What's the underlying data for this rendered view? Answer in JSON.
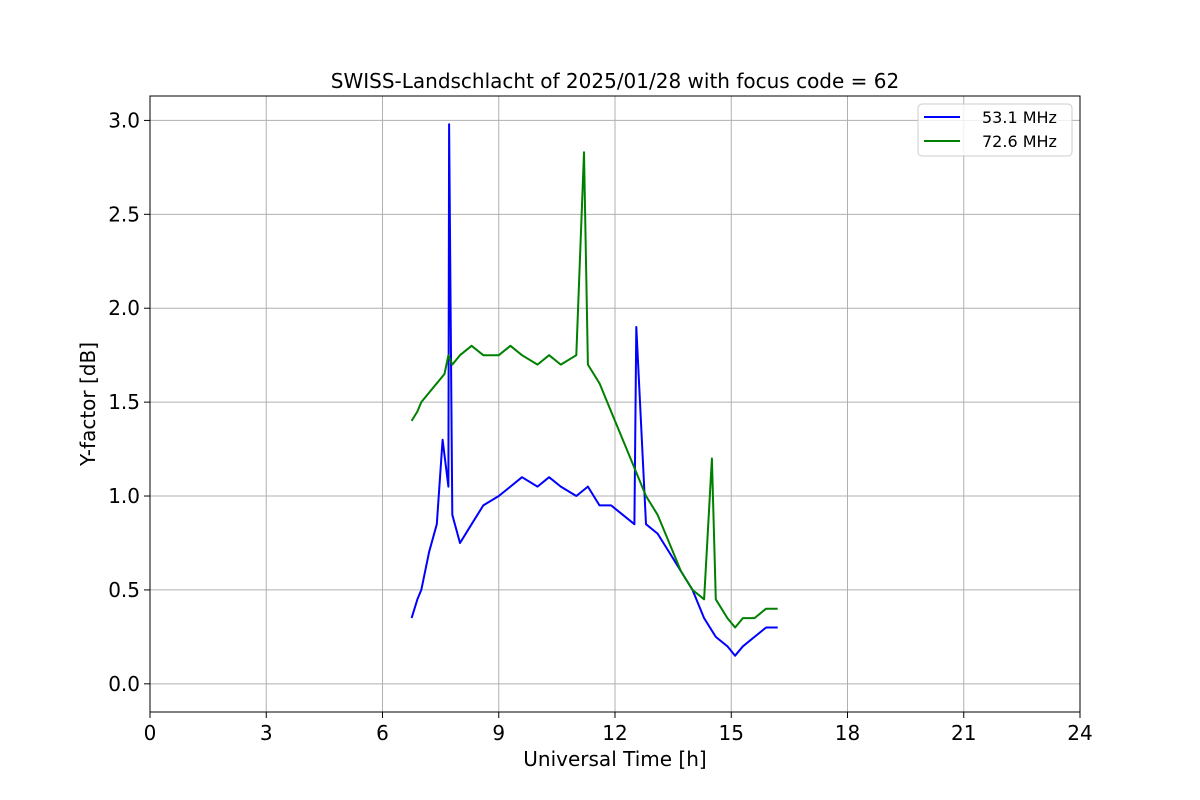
{
  "chart_data": {
    "type": "line",
    "title": "SWISS-Landschlacht of 2025/01/28 with focus code = 62",
    "xlabel": "Universal Time [h]",
    "ylabel": "Y-factor [dB]",
    "xlim": [
      0,
      24
    ],
    "ylim": [
      -0.15,
      3.13
    ],
    "xticks": [
      0,
      3,
      6,
      9,
      12,
      15,
      18,
      21,
      24
    ],
    "xtick_labels": [
      "0",
      "3",
      "6",
      "9",
      "12",
      "15",
      "18",
      "21",
      "24"
    ],
    "yticks": [
      0.0,
      0.5,
      1.0,
      1.5,
      2.0,
      2.5,
      3.0
    ],
    "ytick_labels": [
      "0.0",
      "0.5",
      "1.0",
      "1.5",
      "2.0",
      "2.5",
      "3.0"
    ],
    "grid": true,
    "legend_position": "top-right",
    "series": [
      {
        "name": "53.1 MHz",
        "color": "#0000ff",
        "x": [
          6.75,
          6.9,
          7.0,
          7.2,
          7.4,
          7.55,
          7.7,
          7.72,
          7.8,
          8.0,
          8.3,
          8.6,
          9.0,
          9.3,
          9.6,
          10.0,
          10.3,
          10.6,
          11.0,
          11.3,
          11.6,
          11.9,
          12.2,
          12.5,
          12.55,
          12.8,
          13.1,
          13.4,
          13.7,
          14.0,
          14.3,
          14.6,
          14.9,
          15.1,
          15.3,
          15.6,
          15.9,
          16.2
        ],
        "y": [
          0.35,
          0.45,
          0.5,
          0.7,
          0.85,
          1.3,
          1.05,
          2.98,
          0.9,
          0.75,
          0.85,
          0.95,
          1.0,
          1.05,
          1.1,
          1.05,
          1.1,
          1.05,
          1.0,
          1.05,
          0.95,
          0.95,
          0.9,
          0.85,
          1.9,
          0.85,
          0.8,
          0.7,
          0.6,
          0.5,
          0.35,
          0.25,
          0.2,
          0.15,
          0.2,
          0.25,
          0.3,
          0.3
        ]
      },
      {
        "name": "72.6 MHz",
        "color": "#008000",
        "x": [
          6.75,
          6.9,
          7.0,
          7.2,
          7.4,
          7.6,
          7.7,
          7.8,
          8.0,
          8.3,
          8.6,
          9.0,
          9.3,
          9.6,
          10.0,
          10.3,
          10.6,
          11.0,
          11.2,
          11.3,
          11.6,
          11.9,
          12.2,
          12.5,
          12.8,
          13.1,
          13.4,
          13.7,
          14.0,
          14.3,
          14.5,
          14.6,
          14.9,
          15.1,
          15.3,
          15.6,
          15.9,
          16.2
        ],
        "y": [
          1.4,
          1.45,
          1.5,
          1.55,
          1.6,
          1.65,
          1.75,
          1.7,
          1.75,
          1.8,
          1.75,
          1.75,
          1.8,
          1.75,
          1.7,
          1.75,
          1.7,
          1.75,
          2.83,
          1.7,
          1.6,
          1.45,
          1.3,
          1.15,
          1.0,
          0.9,
          0.75,
          0.6,
          0.5,
          0.45,
          1.2,
          0.45,
          0.35,
          0.3,
          0.35,
          0.35,
          0.4,
          0.4
        ]
      }
    ]
  }
}
